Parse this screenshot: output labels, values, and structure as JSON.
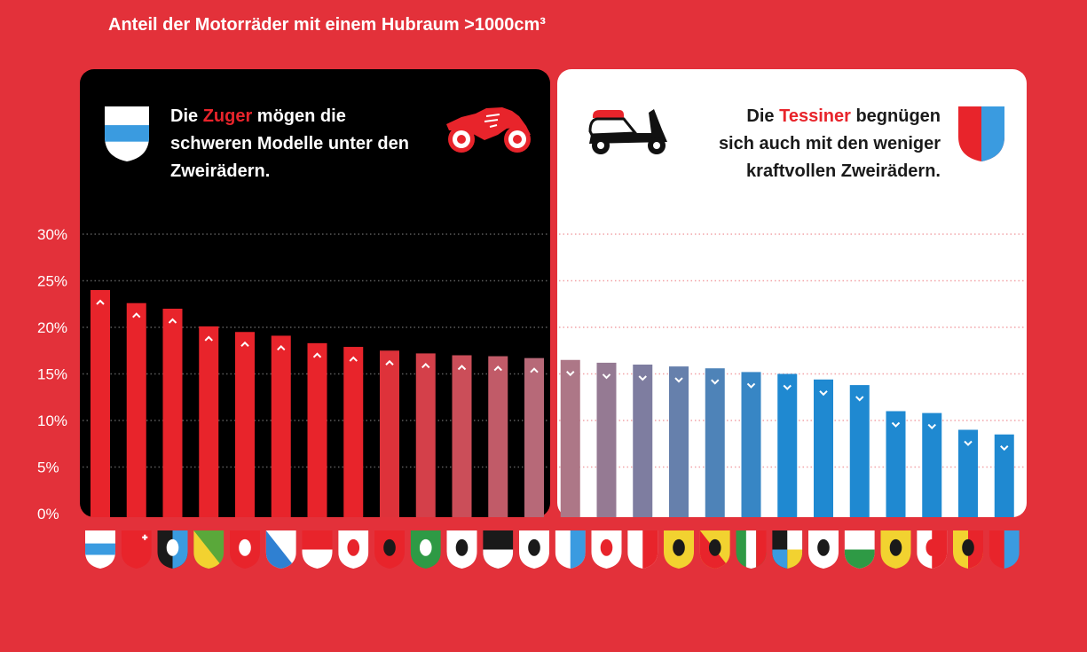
{
  "colors": {
    "background": "#e3313a",
    "panel_dark": "#000000",
    "panel_light": "#ffffff",
    "highlight": "#e8242b",
    "bar_red": "#e8242b",
    "bar_mid": "#ad7787",
    "bar_blue": "#1f89d1",
    "grid_dark": "#5c5c5c",
    "grid_light": "#f2a3a7"
  },
  "left_panel": {
    "line1_pre": "Die ",
    "line1_highlight": "Zuger",
    "line1_post": " mögen die",
    "line2": "schweren Modelle unter den",
    "line3": "Zweirädern.",
    "vehicle_icon": "sport-motorcycle-icon",
    "crest": {
      "icon": "crest-fess-icon",
      "colors": [
        "#ffffff",
        "#3a9be0"
      ]
    }
  },
  "right_panel": {
    "line1_pre": "Die ",
    "line1_highlight": "Tessiner",
    "line1_post": " begnügen",
    "line2": "sich auch mit den weniger",
    "line3": "kraftvollen Zweirädern.",
    "vehicle_icon": "scooter-icon",
    "crest": {
      "icon": "crest-vertical-split-icon",
      "colors": [
        "#e8242b",
        "#3a9be0"
      ]
    }
  },
  "chart_data": {
    "type": "bar",
    "title": "Anteil der Motorräder mit einem Hubraum >1000cm³",
    "ylim": [
      0,
      30
    ],
    "ytick_values": [
      0,
      5,
      10,
      15,
      20,
      25,
      30
    ],
    "yticks": [
      "0%",
      "5%",
      "10%",
      "15%",
      "20%",
      "25%",
      "30%"
    ],
    "grid": true,
    "series": [
      {
        "values": [
          24.0,
          22.6,
          22.0,
          20.1,
          19.5,
          19.1,
          18.3,
          17.9,
          17.5,
          17.2,
          17.0,
          16.9,
          16.7,
          16.5,
          16.2,
          16.0,
          15.8,
          15.6,
          15.2,
          15.0,
          14.4,
          13.8,
          11.0,
          10.8,
          9.0,
          8.5
        ]
      }
    ],
    "category_crests": [
      {
        "icon": "crest-fess-icon",
        "colors": [
          "#ffffff",
          "#3a9be0"
        ]
      },
      {
        "icon": "crest-solid-icon",
        "colors": [
          "#e8242b"
        ],
        "cross": "#ffffff"
      },
      {
        "icon": "crest-vertical-split-icon",
        "colors": [
          "#1a1a1a",
          "#3a9be0"
        ],
        "mark": "#ffffff"
      },
      {
        "icon": "crest-diagonal-split-icon",
        "colors": [
          "#5aa83a",
          "#f2d230"
        ]
      },
      {
        "icon": "crest-solid-icon",
        "colors": [
          "#e8242b"
        ],
        "mark": "#ffffff"
      },
      {
        "icon": "crest-diagonal-split-icon",
        "colors": [
          "#ffffff",
          "#2f80d2"
        ]
      },
      {
        "icon": "crest-horizontal-split-icon",
        "colors": [
          "#e8242b",
          "#ffffff"
        ]
      },
      {
        "icon": "crest-solid-icon",
        "colors": [
          "#ffffff"
        ],
        "mark": "#e8242b"
      },
      {
        "icon": "crest-solid-icon",
        "colors": [
          "#e8242b"
        ],
        "mark": "#1a1a1a"
      },
      {
        "icon": "crest-solid-icon",
        "colors": [
          "#2e9a45"
        ],
        "mark": "#ffffff"
      },
      {
        "icon": "crest-solid-icon",
        "colors": [
          "#ffffff"
        ],
        "mark": "#1a1a1a"
      },
      {
        "icon": "crest-horizontal-split-icon",
        "colors": [
          "#1a1a1a",
          "#ffffff"
        ]
      },
      {
        "icon": "crest-solid-icon",
        "colors": [
          "#ffffff"
        ],
        "mark": "#1a1a1a"
      },
      {
        "icon": "crest-vertical-split-icon",
        "colors": [
          "#ffffff",
          "#3a9be0"
        ]
      },
      {
        "icon": "crest-solid-icon",
        "colors": [
          "#ffffff"
        ],
        "mark": "#e8242b"
      },
      {
        "icon": "crest-vertical-split-icon",
        "colors": [
          "#ffffff",
          "#e8242b"
        ]
      },
      {
        "icon": "crest-solid-icon",
        "colors": [
          "#f2d230"
        ],
        "mark": "#1a1a1a"
      },
      {
        "icon": "crest-diagonal-split-icon",
        "colors": [
          "#f2d230",
          "#e8242b"
        ],
        "mark": "#1a1a1a"
      },
      {
        "icon": "crest-tricolor-vertical-icon",
        "colors": [
          "#2e9a45",
          "#ffffff",
          "#e8242b"
        ]
      },
      {
        "icon": "crest-quartered-icon",
        "colors": [
          "#1a1a1a",
          "#ffffff",
          "#3a9be0",
          "#f2d230"
        ]
      },
      {
        "icon": "crest-solid-icon",
        "colors": [
          "#ffffff"
        ],
        "mark": "#1a1a1a"
      },
      {
        "icon": "crest-horizontal-split-icon",
        "colors": [
          "#ffffff",
          "#2e9a45"
        ]
      },
      {
        "icon": "crest-solid-icon",
        "colors": [
          "#f2d230"
        ],
        "mark": "#1a1a1a"
      },
      {
        "icon": "crest-vertical-split-icon",
        "colors": [
          "#ffffff",
          "#e8242b"
        ],
        "mark": "#e8242b"
      },
      {
        "icon": "crest-vertical-split-icon",
        "colors": [
          "#f2d230",
          "#e8242b"
        ],
        "mark": "#1a1a1a"
      },
      {
        "icon": "crest-vertical-split-icon",
        "colors": [
          "#e8242b",
          "#3a9be0"
        ]
      }
    ]
  }
}
